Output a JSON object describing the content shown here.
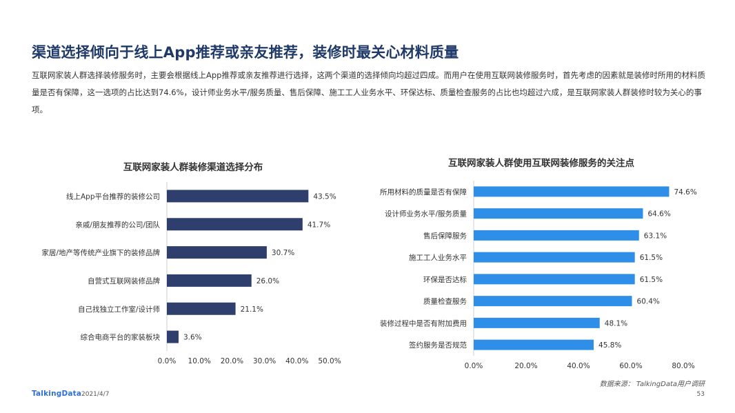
{
  "header": {
    "title": "渠道选择倾向于线上App推荐或亲友推荐，装修时最关心材料质量",
    "description": "互联网家装人群选择装修服务时，主要会根据线上App推荐或亲友推荐进行选择，这两个渠道的选择倾向均超过四成。而用户在使用互联网装修服务时，首先考虑的因素就是装修时所用的材料质量是否有保障，这一选项的占比达到74.6%，设计师业务水平/服务质量、售后保障、施工工人业务水平、环保达标、质量检查服务的占比也均超过六成，是互联网家装人群装修时较为关心的事项。"
  },
  "chart_data": [
    {
      "type": "bar",
      "orientation": "horizontal",
      "title": "互联网家装人群装修渠道选择分布",
      "categories": [
        "线上App平台推荐的装修公司",
        "亲戚/朋友推荐的公司/团队",
        "家居/地产等传统产业旗下的装修品牌",
        "自营式互联网装修品牌",
        "自己找独立工作室/设计师",
        "综合电商平台的家装板块"
      ],
      "values": [
        43.5,
        41.7,
        30.7,
        26.0,
        21.1,
        3.6
      ],
      "value_labels": [
        "43.5%",
        "41.7%",
        "30.7%",
        "26.0%",
        "21.1%",
        "3.6%"
      ],
      "xlim": [
        0,
        50
      ],
      "xticks": [
        "0.0%",
        "10.0%",
        "20.0%",
        "30.0%",
        "40.0%",
        "50.0%"
      ],
      "color": "#2e3f6e"
    },
    {
      "type": "bar",
      "orientation": "horizontal",
      "title": "互联网家装人群使用互联网装修服务的关注点",
      "categories": [
        "所用材料的质量是否有保障",
        "设计师业务水平/服务质量",
        "售后保障服务",
        "施工工人业务水平",
        "环保是否达标",
        "质量检查服务",
        "装修过程中是否有附加费用",
        "签约服务是否规范"
      ],
      "values": [
        74.6,
        64.6,
        63.1,
        61.5,
        61.5,
        60.4,
        48.1,
        45.8
      ],
      "value_labels": [
        "74.6%",
        "64.6%",
        "63.1%",
        "61.5%",
        "61.5%",
        "60.4%",
        "48.1%",
        "45.8%"
      ],
      "xlim": [
        0,
        80
      ],
      "xticks": [
        "0.0%",
        "20.0%",
        "40.0%",
        "60.0%",
        "80.0%"
      ],
      "color": "#2f8fe8"
    }
  ],
  "footer": {
    "source": "数据来源： TalkingData用户调研",
    "logo": "TalkingData",
    "date": "2021/4/7",
    "page": "53"
  }
}
